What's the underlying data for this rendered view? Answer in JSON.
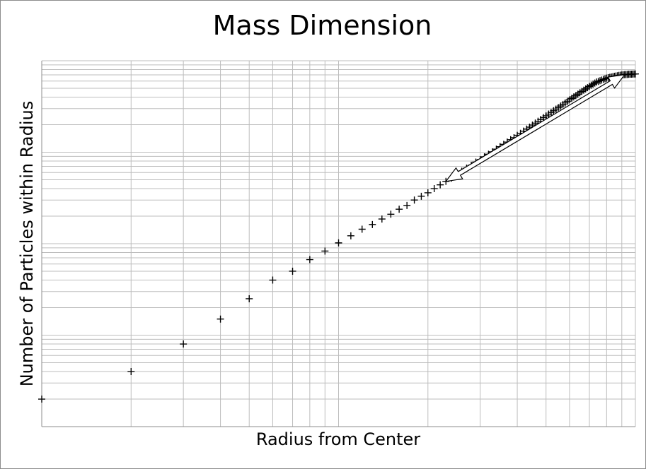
{
  "chart_data": {
    "type": "scatter",
    "title": "Mass Dimension",
    "xlabel": "Radius from Center",
    "ylabel": "Number of Particles within Radius",
    "x_scale": "log",
    "y_scale": "log",
    "xlim": [
      1,
      100
    ],
    "ylim": [
      1,
      10000
    ],
    "grid": true,
    "tick_labels_shown": false,
    "marker": "+",
    "marker_color": "#000000",
    "points": [
      [
        1,
        2
      ],
      [
        2,
        4
      ],
      [
        3,
        8
      ],
      [
        4,
        15
      ],
      [
        5,
        25
      ],
      [
        6,
        40
      ],
      [
        7,
        50
      ],
      [
        8,
        67
      ],
      [
        9,
        83
      ],
      [
        10,
        102
      ],
      [
        11,
        122
      ],
      [
        12,
        144
      ],
      [
        13,
        162
      ],
      [
        14,
        186
      ],
      [
        15,
        210
      ],
      [
        16,
        238
      ],
      [
        17,
        262
      ],
      [
        18,
        300
      ],
      [
        19,
        330
      ],
      [
        20,
        360
      ],
      [
        21,
        400
      ],
      [
        22,
        440
      ],
      [
        23,
        480
      ],
      [
        24,
        520
      ],
      [
        25,
        570
      ],
      [
        26,
        620
      ],
      [
        27,
        670
      ],
      [
        28,
        720
      ],
      [
        29,
        780
      ],
      [
        30,
        830
      ],
      [
        31,
        890
      ],
      [
        32,
        950
      ],
      [
        33,
        1010
      ],
      [
        34,
        1080
      ],
      [
        35,
        1150
      ],
      [
        36,
        1220
      ],
      [
        37,
        1290
      ],
      [
        38,
        1370
      ],
      [
        39,
        1440
      ],
      [
        40,
        1530
      ],
      [
        41,
        1610
      ],
      [
        42,
        1700
      ],
      [
        43,
        1790
      ],
      [
        44,
        1880
      ],
      [
        45,
        1980
      ],
      [
        46,
        2080
      ],
      [
        47,
        2180
      ],
      [
        48,
        2280
      ],
      [
        49,
        2390
      ],
      [
        50,
        2500
      ],
      [
        51,
        2610
      ],
      [
        52,
        2720
      ],
      [
        53,
        2840
      ],
      [
        54,
        2960
      ],
      [
        55,
        3080
      ],
      [
        56,
        3200
      ],
      [
        57,
        3330
      ],
      [
        58,
        3460
      ],
      [
        59,
        3600
      ],
      [
        60,
        3740
      ],
      [
        61,
        3880
      ],
      [
        62,
        4020
      ],
      [
        63,
        4160
      ],
      [
        64,
        4310
      ],
      [
        65,
        4460
      ],
      [
        66,
        4610
      ],
      [
        67,
        4770
      ],
      [
        68,
        4920
      ],
      [
        69,
        5080
      ],
      [
        70,
        5250
      ],
      [
        71,
        5400
      ],
      [
        72,
        5550
      ],
      [
        73,
        5700
      ],
      [
        74,
        5850
      ],
      [
        75,
        5950
      ],
      [
        76,
        6050
      ],
      [
        77,
        6150
      ],
      [
        78,
        6250
      ],
      [
        79,
        6350
      ],
      [
        80,
        6450
      ],
      [
        81,
        6520
      ],
      [
        82,
        6580
      ],
      [
        83,
        6640
      ],
      [
        84,
        6700
      ],
      [
        85,
        6760
      ],
      [
        86,
        6810
      ],
      [
        87,
        6860
      ],
      [
        88,
        6910
      ],
      [
        89,
        6950
      ],
      [
        90,
        6990
      ],
      [
        91,
        7020
      ],
      [
        92,
        7050
      ],
      [
        93,
        7070
      ],
      [
        94,
        7090
      ],
      [
        95,
        7110
      ],
      [
        96,
        7130
      ],
      [
        97,
        7140
      ],
      [
        98,
        7150
      ],
      [
        99,
        7160
      ],
      [
        100,
        7170
      ]
    ],
    "annotations": [
      {
        "type": "double-arrow",
        "from": [
          23,
          480
        ],
        "to": [
          92,
          7050
        ]
      }
    ]
  }
}
